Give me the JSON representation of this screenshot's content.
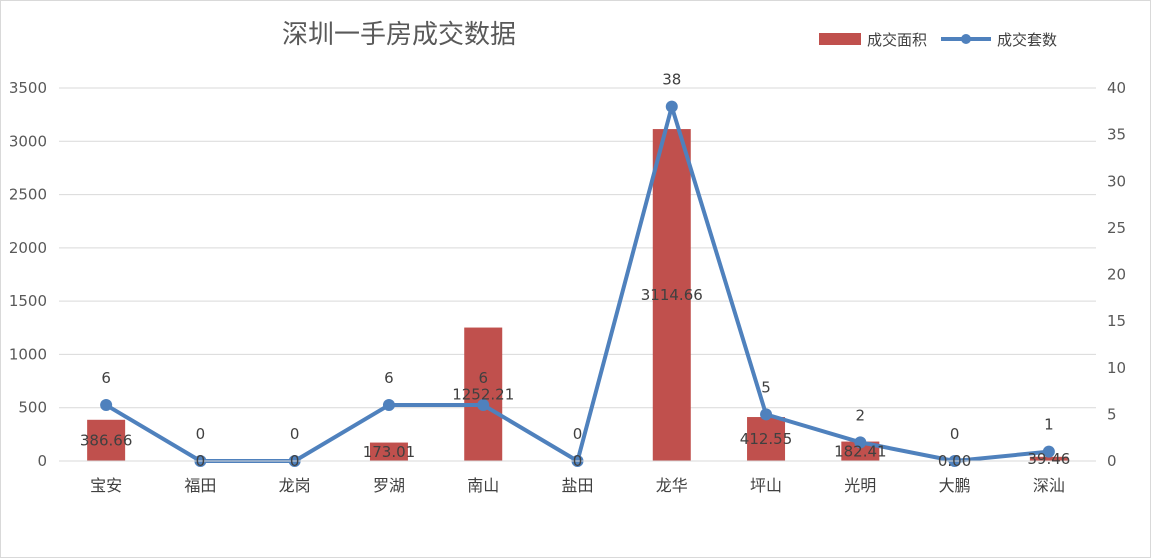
{
  "chart_data": {
    "type": "bar+line",
    "title": "深圳一手房成交数据",
    "categories": [
      "宝安",
      "福田",
      "龙岗",
      "罗湖",
      "南山",
      "盐田",
      "龙华",
      "坪山",
      "光明",
      "大鹏",
      "深汕"
    ],
    "series": [
      {
        "name": "成交面积",
        "type": "bar",
        "axis": "left",
        "color": "#c0504d",
        "values": [
          386.66,
          0,
          0,
          173.01,
          1252.21,
          0,
          3114.66,
          412.55,
          182.41,
          0.0,
          39.46
        ],
        "labels": [
          "386.66",
          "0",
          "0",
          "173.01",
          "1252.21",
          "0",
          "3114.66",
          "412.55",
          "182.41",
          "0.00",
          "39.46"
        ]
      },
      {
        "name": "成交套数",
        "type": "line",
        "axis": "right",
        "color": "#4f81bd",
        "values": [
          6,
          0,
          0,
          6,
          6,
          0,
          38,
          5,
          2,
          0,
          1
        ],
        "labels": [
          "6",
          "0",
          "0",
          "6",
          "6",
          "0",
          "38",
          "5",
          "2",
          "0",
          "1"
        ]
      }
    ],
    "y_left": {
      "min": 0,
      "max": 3500,
      "ticks": [
        "0",
        "500",
        "1000",
        "1500",
        "2000",
        "2500",
        "3000",
        "3500"
      ]
    },
    "y_right": {
      "min": 0,
      "max": 40,
      "ticks": [
        "0",
        "5",
        "10",
        "15",
        "20",
        "25",
        "30",
        "35",
        "40"
      ]
    },
    "grid": true,
    "legend_position": "top-right"
  }
}
